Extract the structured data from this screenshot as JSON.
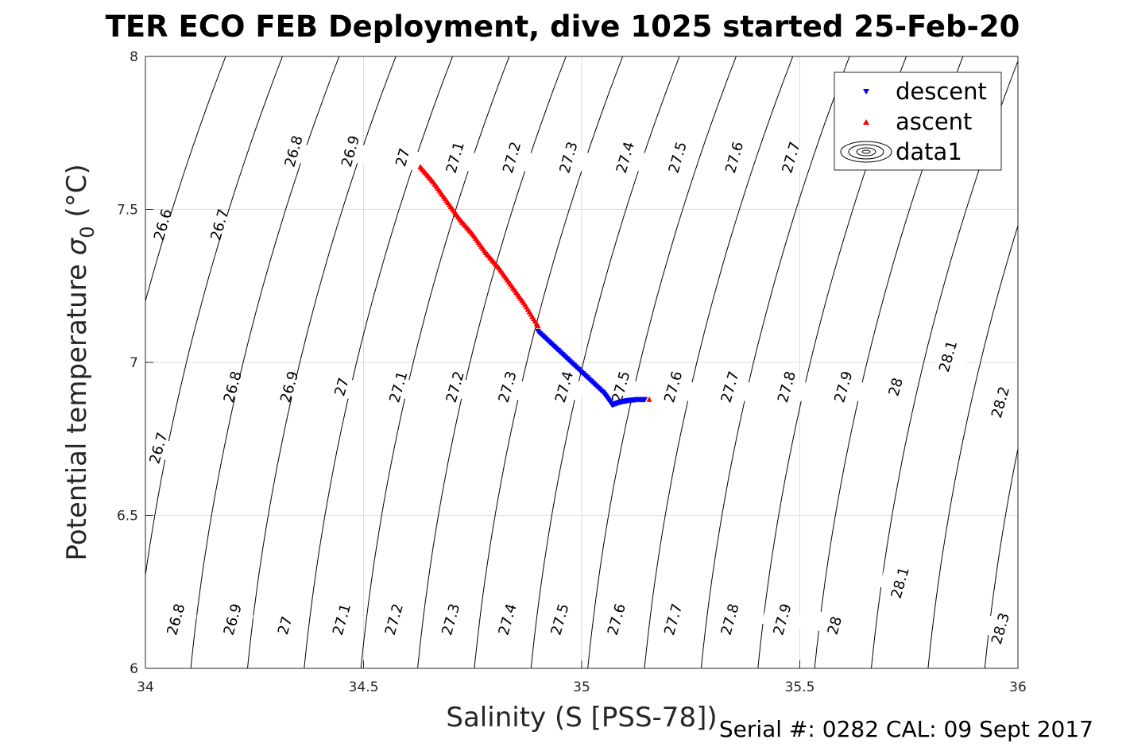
{
  "title": "TER ECO FEB Deployment, dive 1025 started 25-Feb-20",
  "footer": "Serial #: 0282  CAL: 09 Sept 2017",
  "chart_data": {
    "type": "scatter",
    "xlabel": "Salinity (S [PSS-78])",
    "ylabel_main": "Potential temperature ",
    "ylabel_sigma": "σ",
    "ylabel_sub": "0",
    "ylabel_unit": " (°C)",
    "xlim": [
      34,
      36
    ],
    "ylim": [
      6,
      8
    ],
    "xticks": [
      "34",
      "34.5",
      "35",
      "35.5",
      "36"
    ],
    "yticks": [
      "6",
      "6.5",
      "7",
      "7.5",
      "8"
    ],
    "grid": true,
    "legend_position": "top-right",
    "colors": {
      "descent": "#0000ff",
      "ascent": "#ff0000",
      "contour": "#000000",
      "grid": "#dcdcdc"
    },
    "series": [
      {
        "name": "descent",
        "marker": "triangle-down",
        "x": [
          34.9,
          34.93,
          34.96,
          34.99,
          35.02,
          35.05,
          35.07,
          35.09,
          35.11,
          35.13,
          35.145
        ],
        "y": [
          7.1,
          7.06,
          7.02,
          6.98,
          6.94,
          6.9,
          6.86,
          6.87,
          6.875,
          6.878,
          6.878
        ]
      },
      {
        "name": "ascent",
        "marker": "triangle-up",
        "x": [
          34.63,
          34.66,
          34.69,
          34.72,
          34.75,
          34.78,
          34.81,
          34.84,
          34.87,
          34.9,
          35.155
        ],
        "y": [
          7.64,
          7.59,
          7.53,
          7.47,
          7.42,
          7.36,
          7.31,
          7.25,
          7.19,
          7.12,
          6.88
        ]
      },
      {
        "name": "data1",
        "type": "contour",
        "levels": [
          26.6,
          26.7,
          26.8,
          26.9,
          27.0,
          27.1,
          27.2,
          27.3,
          27.4,
          27.5,
          27.6,
          27.7,
          27.8,
          27.9,
          28.0,
          28.1,
          28.2,
          28.3
        ],
        "labels": [
          {
            "text": "26.6",
            "x": 34.04,
            "y": 7.45
          },
          {
            "text": "26.7",
            "x": 34.17,
            "y": 7.45
          },
          {
            "text": "26.8",
            "x": 34.34,
            "y": 7.69
          },
          {
            "text": "26.9",
            "x": 34.47,
            "y": 7.69
          },
          {
            "text": "27",
            "x": 34.59,
            "y": 7.67
          },
          {
            "text": "27.1",
            "x": 34.71,
            "y": 7.67
          },
          {
            "text": "27.2",
            "x": 34.84,
            "y": 7.67
          },
          {
            "text": "27.3",
            "x": 34.97,
            "y": 7.67
          },
          {
            "text": "27.4",
            "x": 35.1,
            "y": 7.67
          },
          {
            "text": "27.5",
            "x": 35.22,
            "y": 7.67
          },
          {
            "text": "27.6",
            "x": 35.35,
            "y": 7.67
          },
          {
            "text": "27.7",
            "x": 35.48,
            "y": 7.67
          },
          {
            "text": "26.7",
            "x": 34.03,
            "y": 6.72
          },
          {
            "text": "26.8",
            "x": 34.2,
            "y": 6.92
          },
          {
            "text": "26.9",
            "x": 34.33,
            "y": 6.92
          },
          {
            "text": "27",
            "x": 34.45,
            "y": 6.92
          },
          {
            "text": "27.1",
            "x": 34.58,
            "y": 6.92
          },
          {
            "text": "27.2",
            "x": 34.71,
            "y": 6.92
          },
          {
            "text": "27.3",
            "x": 34.83,
            "y": 6.92
          },
          {
            "text": "27.4",
            "x": 34.96,
            "y": 6.92
          },
          {
            "text": "27.5",
            "x": 35.09,
            "y": 6.92
          },
          {
            "text": "27.6",
            "x": 35.21,
            "y": 6.92
          },
          {
            "text": "27.7",
            "x": 35.34,
            "y": 6.92
          },
          {
            "text": "27.8",
            "x": 35.47,
            "y": 6.92
          },
          {
            "text": "27.9",
            "x": 35.6,
            "y": 6.92
          },
          {
            "text": "28",
            "x": 35.72,
            "y": 6.92
          },
          {
            "text": "28.1",
            "x": 35.84,
            "y": 7.02
          },
          {
            "text": "28.2",
            "x": 35.96,
            "y": 6.87
          },
          {
            "text": "26.8",
            "x": 34.07,
            "y": 6.16
          },
          {
            "text": "26.9",
            "x": 34.2,
            "y": 6.16
          },
          {
            "text": "27",
            "x": 34.32,
            "y": 6.14
          },
          {
            "text": "27.1",
            "x": 34.45,
            "y": 6.16
          },
          {
            "text": "27.2",
            "x": 34.57,
            "y": 6.16
          },
          {
            "text": "27.3",
            "x": 34.7,
            "y": 6.16
          },
          {
            "text": "27.4",
            "x": 34.83,
            "y": 6.16
          },
          {
            "text": "27.5",
            "x": 34.95,
            "y": 6.16
          },
          {
            "text": "27.6",
            "x": 35.08,
            "y": 6.16
          },
          {
            "text": "27.7",
            "x": 35.21,
            "y": 6.16
          },
          {
            "text": "27.8",
            "x": 35.34,
            "y": 6.16
          },
          {
            "text": "27.9",
            "x": 35.46,
            "y": 6.16
          },
          {
            "text": "28",
            "x": 35.58,
            "y": 6.14
          },
          {
            "text": "28.1",
            "x": 35.73,
            "y": 6.28
          },
          {
            "text": "28.3",
            "x": 35.96,
            "y": 6.13
          }
        ]
      }
    ]
  }
}
